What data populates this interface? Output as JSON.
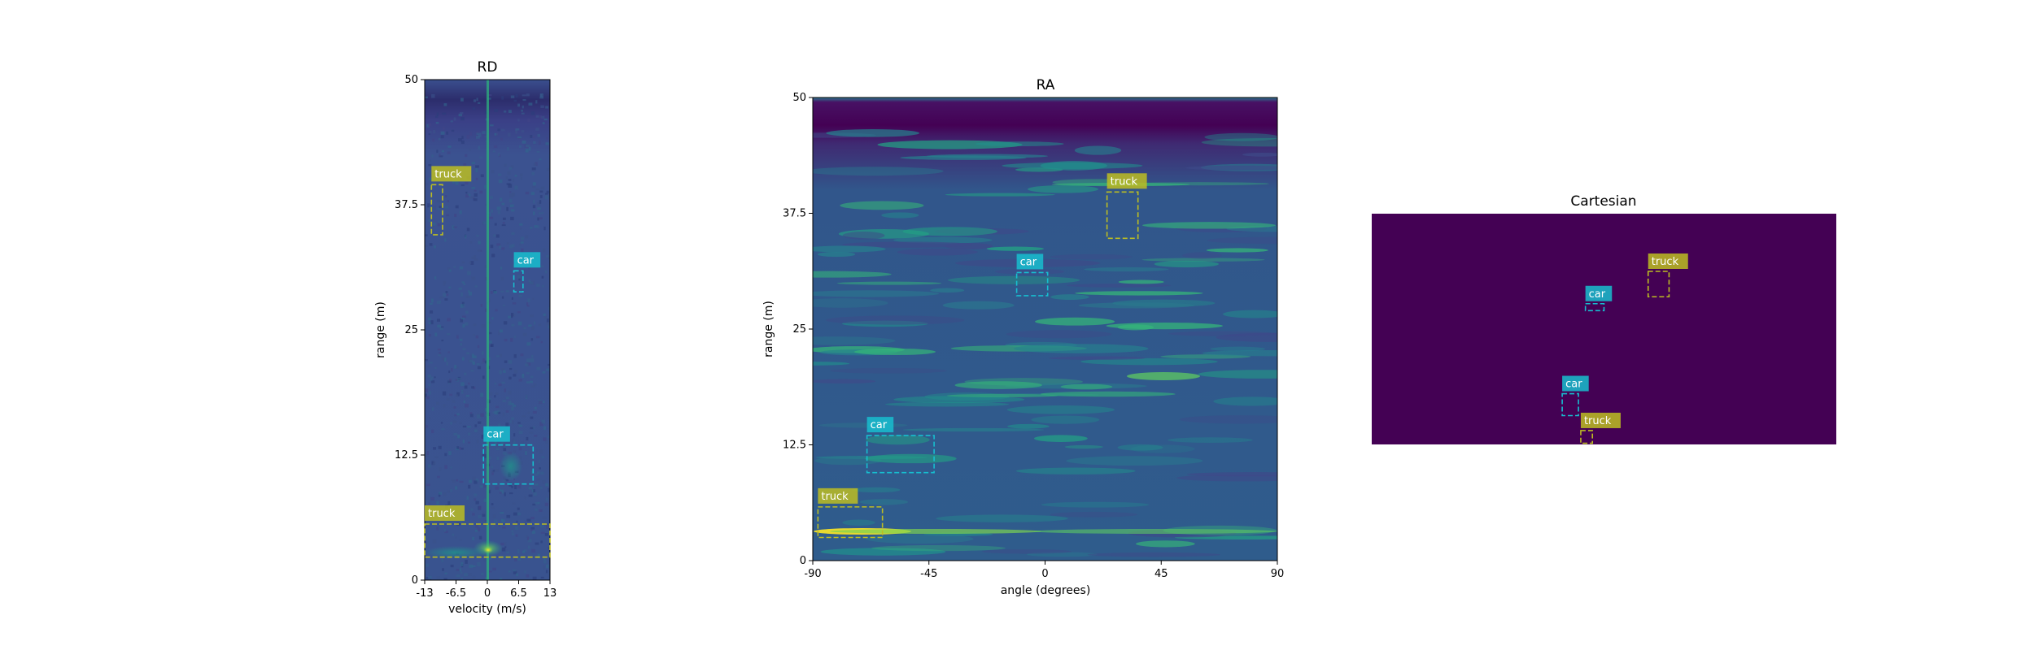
{
  "chart_data": [
    {
      "type": "heatmap",
      "title": "RD",
      "xlabel": "velocity (m/s)",
      "ylabel": "range (m)",
      "xlim": [
        -13,
        13
      ],
      "ylim": [
        0,
        50
      ],
      "xticks": [
        "-13",
        "-6.5",
        "0",
        "6.5",
        "13"
      ],
      "yticks": [
        "0",
        "12.5",
        "25",
        "37.5",
        "50"
      ],
      "colormap": "viridis",
      "boxes": [
        {
          "label": "truck",
          "color": "#bcbd22",
          "x0": -11.6,
          "x1": -9.3,
          "y0": 34.5,
          "y1": 39.5
        },
        {
          "label": "car",
          "color": "#17becf",
          "x0": 5.5,
          "x1": 7.4,
          "y0": 28.8,
          "y1": 30.9
        },
        {
          "label": "car",
          "color": "#17becf",
          "x0": -0.8,
          "x1": 9.5,
          "y0": 9.6,
          "y1": 13.5
        },
        {
          "label": "truck",
          "color": "#bcbd22",
          "x0": -13,
          "x1": 13,
          "y0": 2.3,
          "y1": 5.6
        }
      ]
    },
    {
      "type": "heatmap",
      "title": "RA",
      "xlabel": "angle (degrees)",
      "ylabel": "range (m)",
      "xlim": [
        -90,
        90
      ],
      "ylim": [
        0,
        50
      ],
      "xticks": [
        "-90",
        "-45",
        "0",
        "45",
        "90"
      ],
      "yticks": [
        "0",
        "12.5",
        "25",
        "37.5",
        "50"
      ],
      "colormap": "viridis",
      "boxes": [
        {
          "label": "truck",
          "color": "#bcbd22",
          "x0": 24,
          "x1": 36,
          "y0": 34.8,
          "y1": 39.8
        },
        {
          "label": "car",
          "color": "#17becf",
          "x0": -11,
          "x1": 1,
          "y0": 28.6,
          "y1": 31.1
        },
        {
          "label": "car",
          "color": "#17becf",
          "x0": -69,
          "x1": -43,
          "y0": 9.5,
          "y1": 13.5
        },
        {
          "label": "truck",
          "color": "#bcbd22",
          "x0": -88,
          "x1": -63,
          "y0": 2.5,
          "y1": 5.8
        }
      ]
    },
    {
      "type": "heatmap",
      "title": "Cartesian",
      "background": "#440154",
      "boxes": [
        {
          "label": "truck",
          "color": "#bcbd22",
          "x0": 0.595,
          "x1": 0.64,
          "y0": 0.36,
          "y1": 0.25
        },
        {
          "label": "car",
          "color": "#17becf",
          "x0": 0.46,
          "x1": 0.5,
          "y0": 0.42,
          "y1": 0.39
        },
        {
          "label": "car",
          "color": "#17becf",
          "x0": 0.41,
          "x1": 0.445,
          "y0": 0.875,
          "y1": 0.78
        },
        {
          "label": "truck",
          "color": "#bcbd22",
          "x0": 0.45,
          "x1": 0.475,
          "y0": 0.995,
          "y1": 0.94
        }
      ]
    }
  ]
}
